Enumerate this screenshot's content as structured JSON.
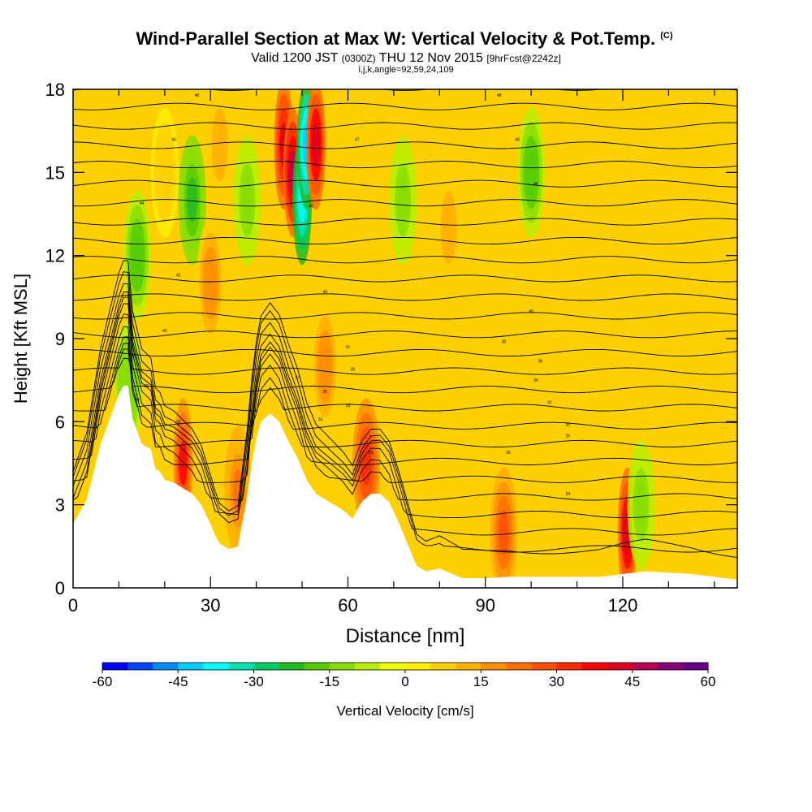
{
  "title": {
    "main": "Wind-Parallel Section at Max W: Vertical Velocity & Pot.Temp.",
    "copyright": "(C)",
    "valid_prefix": "Valid 1200 JST",
    "valid_utc": "(0300Z)",
    "valid_date": "THU 12 Nov 2015",
    "forecast": "[9hrFcst@2242z]",
    "indices": "i,j,k,angle=92,59,24,109"
  },
  "chart_data": {
    "type": "heatmap",
    "title": "Wind-Parallel Section at Max W: Vertical Velocity & Pot.Temp.",
    "xlabel": "Distance [nm]",
    "ylabel": "Height [Kft MSL]",
    "xlim": [
      0,
      145
    ],
    "ylim": [
      0,
      18
    ],
    "x_ticks": [
      0,
      30,
      60,
      90,
      120
    ],
    "x_tick_labels": [
      "0",
      "30",
      "60",
      "90",
      "120"
    ],
    "y_ticks": [
      0,
      3,
      6,
      9,
      12,
      15,
      18
    ],
    "y_tick_labels": [
      "0",
      "3",
      "6",
      "9",
      "12",
      "15",
      "18"
    ],
    "colorbar": {
      "label": "Vertical Velocity [cm/s]",
      "min": -60,
      "max": 60,
      "step": 5,
      "tick_values": [
        -60,
        -45,
        -30,
        -15,
        0,
        15,
        30,
        45,
        60
      ],
      "tick_labels": [
        "-60",
        "-45",
        "-30",
        "-15",
        "0",
        "15",
        "30",
        "45",
        "60"
      ],
      "colors": [
        "#0000ff",
        "#0044ff",
        "#0088ff",
        "#00ccff",
        "#00ffff",
        "#00e0b0",
        "#00cc66",
        "#22bb22",
        "#55cc00",
        "#88dd00",
        "#bbee00",
        "#eeff00",
        "#ffee00",
        "#ffd000",
        "#ffb000",
        "#ff9000",
        "#ff7000",
        "#ff5000",
        "#ff2a00",
        "#ff0000",
        "#dd0022",
        "#bb0055",
        "#880077",
        "#660088"
      ]
    },
    "velocity_cells": [
      {
        "x": 12,
        "z": 7.3,
        "w": -15
      },
      {
        "x": 14,
        "z": 12,
        "w": -18
      },
      {
        "x": 20,
        "z": 15,
        "w": 8
      },
      {
        "x": 24,
        "z": 4.5,
        "w": 35
      },
      {
        "x": 26,
        "z": 14,
        "w": -22
      },
      {
        "x": 30,
        "z": 11,
        "w": 18
      },
      {
        "x": 32,
        "z": 16,
        "w": 14
      },
      {
        "x": 36,
        "z": 3.5,
        "w": 22
      },
      {
        "x": 38,
        "z": 14,
        "w": -14
      },
      {
        "x": 46,
        "z": 16,
        "w": 40
      },
      {
        "x": 48,
        "z": 15,
        "w": 45
      },
      {
        "x": 50,
        "z": 14,
        "w": -40
      },
      {
        "x": 51,
        "z": 16,
        "w": -45
      },
      {
        "x": 53,
        "z": 16,
        "w": 42
      },
      {
        "x": 55,
        "z": 8,
        "w": 18
      },
      {
        "x": 64,
        "z": 4.5,
        "w": 30
      },
      {
        "x": 72,
        "z": 14,
        "w": -12
      },
      {
        "x": 82,
        "z": 13,
        "w": 14
      },
      {
        "x": 94,
        "z": 2,
        "w": 25
      },
      {
        "x": 100,
        "z": 15,
        "w": -18
      },
      {
        "x": 121,
        "z": 2,
        "w": 42
      },
      {
        "x": 124,
        "z": 3,
        "w": -12
      }
    ],
    "terrain": [
      [
        0,
        2.3
      ],
      [
        3,
        3.2
      ],
      [
        6,
        5.2
      ],
      [
        8,
        6.1
      ],
      [
        10,
        7.0
      ],
      [
        11,
        7.3
      ],
      [
        12,
        7.3
      ],
      [
        13,
        6.1
      ],
      [
        15,
        5.2
      ],
      [
        17,
        5.0
      ],
      [
        18,
        4.3
      ],
      [
        19,
        4.2
      ],
      [
        20,
        3.9
      ],
      [
        22,
        3.8
      ],
      [
        24,
        3.6
      ],
      [
        26,
        3.4
      ],
      [
        28,
        3.0
      ],
      [
        30,
        2.3
      ],
      [
        31,
        1.9
      ],
      [
        32,
        1.6
      ],
      [
        34,
        1.4
      ],
      [
        36,
        1.5
      ],
      [
        37,
        2.4
      ],
      [
        38,
        3.3
      ],
      [
        39,
        4.5
      ],
      [
        40,
        5.4
      ],
      [
        41,
        6.0
      ],
      [
        43,
        6.3
      ],
      [
        45,
        6.0
      ],
      [
        47,
        5.3
      ],
      [
        49,
        4.7
      ],
      [
        51,
        3.9
      ],
      [
        53,
        3.4
      ],
      [
        56,
        3.1
      ],
      [
        59,
        2.8
      ],
      [
        61,
        2.5
      ],
      [
        63,
        3.1
      ],
      [
        65,
        3.4
      ],
      [
        67,
        3.4
      ],
      [
        69,
        3.1
      ],
      [
        71,
        2.4
      ],
      [
        73,
        1.6
      ],
      [
        75,
        0.8
      ],
      [
        77,
        0.6
      ],
      [
        80,
        0.7
      ],
      [
        85,
        0.35
      ],
      [
        90,
        0.35
      ],
      [
        95,
        0.4
      ],
      [
        105,
        0.4
      ],
      [
        115,
        0.4
      ],
      [
        125,
        0.6
      ],
      [
        135,
        0.5
      ],
      [
        145,
        0.3
      ]
    ],
    "theta_labels": [
      {
        "x": 27,
        "z": 17.8,
        "text": "48"
      },
      {
        "x": 22,
        "z": 16.2,
        "text": "46"
      },
      {
        "x": 15,
        "z": 13.9,
        "text": "44"
      },
      {
        "x": 23,
        "z": 11.3,
        "text": "42"
      },
      {
        "x": 20,
        "z": 9.3,
        "text": "40"
      },
      {
        "x": 13,
        "z": 8.4,
        "text": "38"
      },
      {
        "x": 16,
        "z": 7.3,
        "text": "36"
      },
      {
        "x": 14,
        "z": 6.8,
        "text": "34"
      },
      {
        "x": 23,
        "z": 6.0,
        "text": "32"
      },
      {
        "x": 62,
        "z": 16.2,
        "text": "47"
      },
      {
        "x": 52,
        "z": 13.8,
        "text": "45"
      },
      {
        "x": 55,
        "z": 10.7,
        "text": "43"
      },
      {
        "x": 60,
        "z": 8.7,
        "text": "41"
      },
      {
        "x": 61,
        "z": 7.9,
        "text": "39"
      },
      {
        "x": 49,
        "z": 7.6,
        "text": "37"
      },
      {
        "x": 55,
        "z": 7.1,
        "text": "35"
      },
      {
        "x": 60,
        "z": 6.6,
        "text": "33"
      },
      {
        "x": 54,
        "z": 6.1,
        "text": "31"
      },
      {
        "x": 65,
        "z": 4.9,
        "text": "29"
      },
      {
        "x": 93,
        "z": 17.8,
        "text": "48"
      },
      {
        "x": 97,
        "z": 16.2,
        "text": "46"
      },
      {
        "x": 101,
        "z": 14.6,
        "text": "44"
      },
      {
        "x": 100,
        "z": 10.0,
        "text": "40"
      },
      {
        "x": 94,
        "z": 8.9,
        "text": "38"
      },
      {
        "x": 102,
        "z": 8.2,
        "text": "36"
      },
      {
        "x": 101,
        "z": 7.5,
        "text": "34"
      },
      {
        "x": 104,
        "z": 6.7,
        "text": "32"
      },
      {
        "x": 108,
        "z": 5.9,
        "text": "30"
      },
      {
        "x": 108,
        "z": 5.5,
        "text": "28"
      },
      {
        "x": 95,
        "z": 4.9,
        "text": "26"
      },
      {
        "x": 108,
        "z": 3.4,
        "text": "24"
      }
    ]
  }
}
